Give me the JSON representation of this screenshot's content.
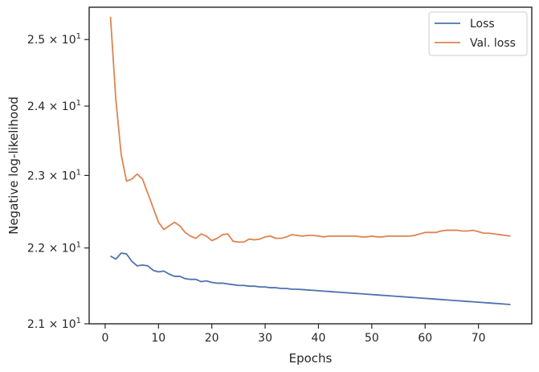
{
  "chart_data": {
    "type": "line",
    "title": "",
    "xlabel": "Epochs",
    "ylabel": "Negative log-likelihood",
    "yscale": "log",
    "xlim": [
      -3,
      80
    ],
    "ylim": [
      21.0,
      25.5
    ],
    "x_ticks": [
      0,
      10,
      20,
      30,
      40,
      50,
      60,
      70
    ],
    "y_ticks": [
      {
        "value": 21,
        "mant": "2.1",
        "exp": "1"
      },
      {
        "value": 22,
        "mant": "2.2",
        "exp": "1"
      },
      {
        "value": 23,
        "mant": "2.3",
        "exp": "1"
      },
      {
        "value": 24,
        "mant": "2.4",
        "exp": "1"
      },
      {
        "value": 25,
        "mant": "2.5",
        "exp": "1"
      }
    ],
    "tick_sep": " × ",
    "tick_base": "10",
    "grid": false,
    "legend_position": "top-right",
    "series": [
      {
        "name": "Loss",
        "color": "#4c72b0",
        "x": [
          1,
          2,
          3,
          4,
          5,
          6,
          7,
          8,
          9,
          10,
          11,
          12,
          13,
          14,
          15,
          16,
          17,
          18,
          19,
          20,
          21,
          22,
          23,
          24,
          25,
          26,
          27,
          28,
          29,
          30,
          31,
          32,
          33,
          34,
          35,
          36,
          37,
          38,
          39,
          40,
          41,
          42,
          43,
          44,
          45,
          46,
          47,
          48,
          49,
          50,
          51,
          52,
          53,
          54,
          55,
          56,
          57,
          58,
          59,
          60,
          61,
          62,
          63,
          64,
          65,
          66,
          67,
          68,
          69,
          70,
          71,
          72,
          73,
          74,
          75,
          76
        ],
        "y": [
          21.89,
          21.85,
          21.93,
          21.92,
          21.82,
          21.76,
          21.77,
          21.76,
          21.7,
          21.68,
          21.69,
          21.65,
          21.62,
          21.62,
          21.59,
          21.58,
          21.58,
          21.55,
          21.56,
          21.54,
          21.53,
          21.53,
          21.52,
          21.51,
          21.5,
          21.5,
          21.49,
          21.49,
          21.48,
          21.48,
          21.47,
          21.47,
          21.46,
          21.46,
          21.45,
          21.45,
          21.445,
          21.44,
          21.435,
          21.43,
          21.425,
          21.42,
          21.415,
          21.41,
          21.405,
          21.4,
          21.395,
          21.39,
          21.385,
          21.38,
          21.375,
          21.37,
          21.365,
          21.36,
          21.355,
          21.35,
          21.345,
          21.34,
          21.335,
          21.33,
          21.325,
          21.32,
          21.315,
          21.31,
          21.305,
          21.3,
          21.295,
          21.29,
          21.285,
          21.28,
          21.275,
          21.27,
          21.265,
          21.26,
          21.255,
          21.25
        ]
      },
      {
        "name": "Val. loss",
        "color": "#dd8452",
        "x": [
          1,
          2,
          3,
          4,
          5,
          6,
          7,
          8,
          9,
          10,
          11,
          12,
          13,
          14,
          15,
          16,
          17,
          18,
          19,
          20,
          21,
          22,
          23,
          24,
          25,
          26,
          27,
          28,
          29,
          30,
          31,
          32,
          33,
          34,
          35,
          36,
          37,
          38,
          39,
          40,
          41,
          42,
          43,
          44,
          45,
          46,
          47,
          48,
          49,
          50,
          51,
          52,
          53,
          54,
          55,
          56,
          57,
          58,
          59,
          60,
          61,
          62,
          63,
          64,
          65,
          66,
          67,
          68,
          69,
          70,
          71,
          72,
          73,
          74,
          75,
          76
        ],
        "y": [
          25.35,
          24.1,
          23.3,
          22.92,
          22.95,
          23.02,
          22.95,
          22.75,
          22.55,
          22.35,
          22.25,
          22.3,
          22.35,
          22.3,
          22.21,
          22.16,
          22.13,
          22.19,
          22.16,
          22.1,
          22.13,
          22.18,
          22.19,
          22.09,
          22.08,
          22.08,
          22.12,
          22.11,
          22.12,
          22.15,
          22.16,
          22.13,
          22.13,
          22.15,
          22.18,
          22.17,
          22.16,
          22.17,
          22.17,
          22.16,
          22.15,
          22.16,
          22.16,
          22.16,
          22.16,
          22.16,
          22.16,
          22.15,
          22.15,
          22.16,
          22.15,
          22.15,
          22.16,
          22.16,
          22.16,
          22.16,
          22.16,
          22.17,
          22.19,
          22.21,
          22.21,
          22.21,
          22.23,
          22.24,
          22.24,
          22.24,
          22.23,
          22.23,
          22.24,
          22.22,
          22.2,
          22.2,
          22.19,
          22.18,
          22.17,
          22.16
        ]
      }
    ]
  }
}
